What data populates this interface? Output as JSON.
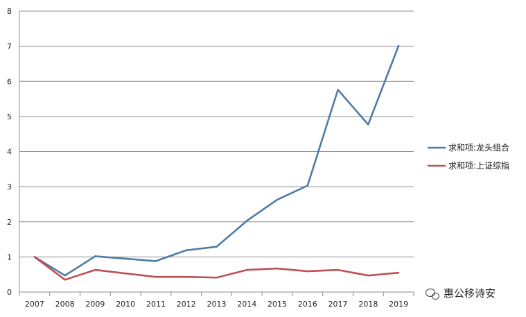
{
  "chart_data": {
    "type": "line",
    "x": [
      "2007",
      "2008",
      "2009",
      "2010",
      "2011",
      "2012",
      "2013",
      "2014",
      "2015",
      "2016",
      "2017",
      "2018",
      "2019"
    ],
    "series": [
      {
        "name": "求和项:龙头组合",
        "color": "#4f7ba8",
        "values": [
          1.0,
          0.47,
          1.02,
          0.95,
          0.88,
          1.19,
          1.29,
          2.03,
          2.63,
          3.03,
          5.76,
          4.77,
          7.01
        ]
      },
      {
        "name": "求和项:上证综指",
        "color": "#bf5052",
        "values": [
          1.0,
          0.35,
          0.63,
          0.53,
          0.43,
          0.43,
          0.41,
          0.63,
          0.67,
          0.59,
          0.63,
          0.47,
          0.55
        ]
      }
    ],
    "ylim": [
      0,
      8
    ],
    "yticks": [
      "0",
      "1",
      "2",
      "3",
      "4",
      "5",
      "6",
      "7",
      "8"
    ],
    "grid": true,
    "legend_position": "right"
  },
  "watermark": {
    "text": "惠公移诗安",
    "icon": "wechat-icon"
  }
}
